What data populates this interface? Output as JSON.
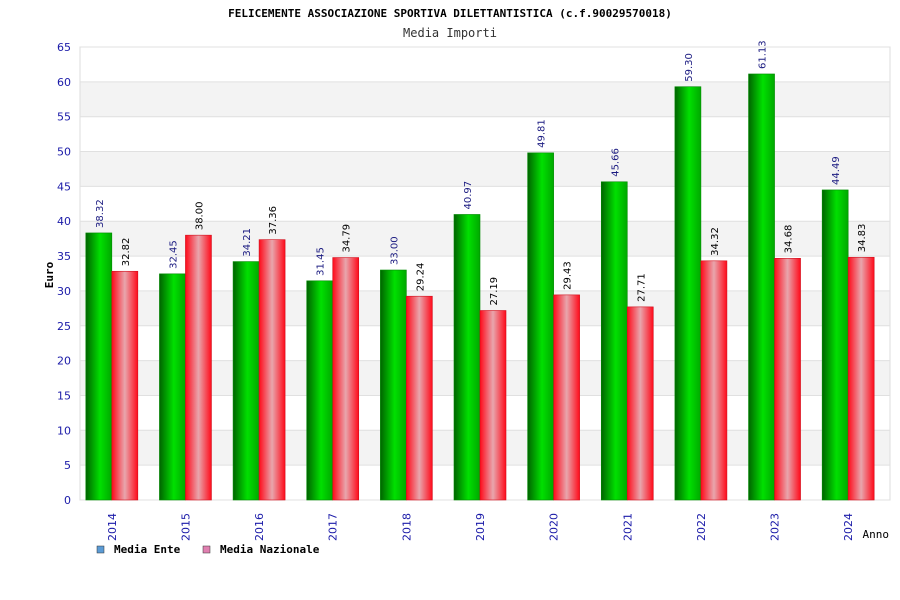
{
  "chart_data": {
    "type": "bar",
    "title": "FELICEMENTE ASSOCIAZIONE SPORTIVA DILETTANTISTICA (c.f.90029570018)",
    "subtitle": "Media Importi",
    "xlabel": "Anno",
    "ylabel": "Euro",
    "ylim": [
      0,
      65
    ],
    "yticks": [
      0,
      5,
      10,
      15,
      20,
      25,
      30,
      35,
      40,
      45,
      50,
      55,
      60,
      65
    ],
    "grid": true,
    "legend_position": "bottom-left",
    "categories": [
      "2014",
      "2015",
      "2016",
      "2017",
      "2018",
      "2019",
      "2020",
      "2021",
      "2022",
      "2023",
      "2024"
    ],
    "series": [
      {
        "name": "Media Ente",
        "color": "#00c000",
        "legend_color": "#5b9bd5",
        "values": [
          38.32,
          32.45,
          34.21,
          31.45,
          33.0,
          40.97,
          49.81,
          45.66,
          59.3,
          61.13,
          44.49
        ],
        "labels": [
          "38.32",
          "32.45",
          "34.21",
          "31.45",
          "33.00",
          "40.97",
          "49.81",
          "45.66",
          "59.30",
          "61.13",
          "44.49"
        ]
      },
      {
        "name": "Media Nazionale",
        "color": "#ff1a2a",
        "legend_color": "#e07fb0",
        "values": [
          32.82,
          38.0,
          37.36,
          34.79,
          29.24,
          27.19,
          29.43,
          27.71,
          34.32,
          34.68,
          34.83
        ],
        "labels": [
          "32.82",
          "38.00",
          "37.36",
          "34.79",
          "29.24",
          "27.19",
          "29.43",
          "27.71",
          "34.32",
          "34.68",
          "34.83"
        ]
      }
    ]
  }
}
